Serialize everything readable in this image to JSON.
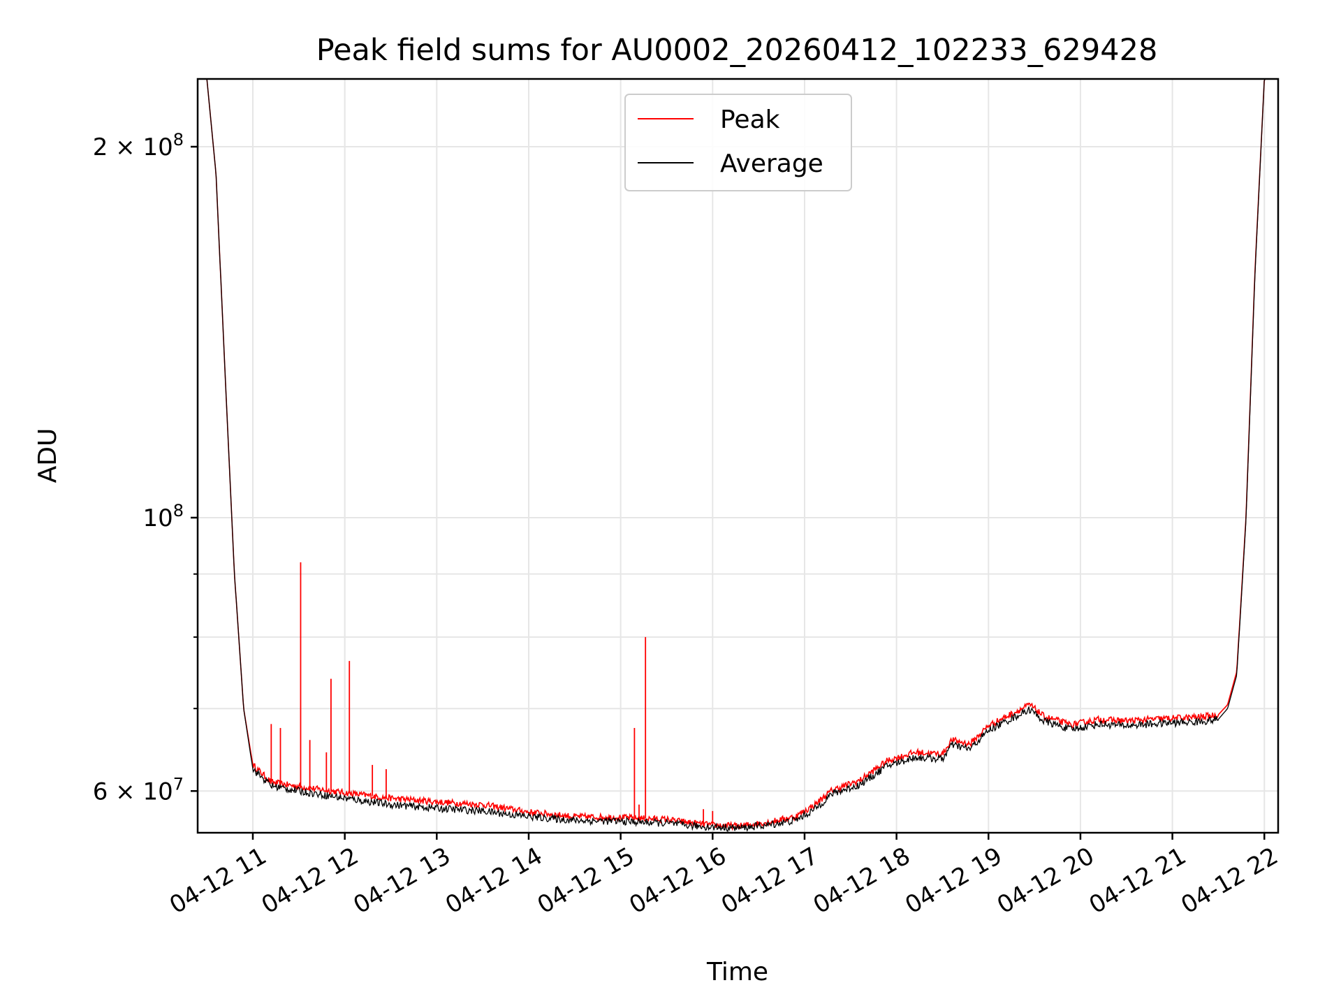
{
  "chart_data": {
    "type": "line",
    "title": "Peak field sums for AU0002_20260412_102233_629428",
    "xlabel": "Time",
    "ylabel": "ADU",
    "yscale": "log",
    "xlim": [
      10.4,
      22.15
    ],
    "ylim": [
      55500000,
      227000000
    ],
    "grid": true,
    "legend_position": "top-center",
    "x_ticks": [
      {
        "value": 11,
        "label": "04-12 11"
      },
      {
        "value": 12,
        "label": "04-12 12"
      },
      {
        "value": 13,
        "label": "04-12 13"
      },
      {
        "value": 14,
        "label": "04-12 14"
      },
      {
        "value": 15,
        "label": "04-12 15"
      },
      {
        "value": 16,
        "label": "04-12 16"
      },
      {
        "value": 17,
        "label": "04-12 17"
      },
      {
        "value": 18,
        "label": "04-12 18"
      },
      {
        "value": 19,
        "label": "04-12 19"
      },
      {
        "value": 20,
        "label": "04-12 20"
      },
      {
        "value": 21,
        "label": "04-12 21"
      },
      {
        "value": 22,
        "label": "04-12 22"
      }
    ],
    "y_major_ticks": [
      {
        "value": 60000000,
        "base": "6 × 10",
        "exp": "7"
      },
      {
        "value": 100000000,
        "base": "10",
        "exp": "8"
      },
      {
        "value": 200000000,
        "base": "2 × 10",
        "exp": "8"
      }
    ],
    "y_minor_ticks": [
      70000000,
      80000000,
      90000000
    ],
    "series": [
      {
        "name": "Peak",
        "color": "#ff0000",
        "x": [
          10.4,
          10.5,
          10.6,
          10.7,
          10.8,
          10.9,
          11.0,
          11.2,
          11.5,
          12.0,
          12.5,
          13.0,
          13.5,
          14.0,
          14.5,
          15.0,
          15.5,
          15.8,
          16.0,
          16.3,
          16.6,
          16.9,
          17.1,
          17.3,
          17.6,
          17.9,
          18.2,
          18.5,
          18.6,
          18.8,
          19.0,
          19.3,
          19.45,
          19.6,
          19.9,
          20.2,
          20.5,
          20.9,
          21.3,
          21.5,
          21.6,
          21.7,
          21.8,
          21.9,
          22.0,
          22.15
        ],
        "y": [
          227000000,
          227000000,
          190000000,
          130000000,
          90000000,
          70000000,
          63000000,
          61000000,
          60500000,
          59800000,
          59200000,
          58800000,
          58500000,
          57700000,
          57200000,
          57100000,
          56900000,
          56500000,
          56300000,
          56200000,
          56600000,
          57200000,
          58400000,
          60100000,
          61200000,
          63500000,
          64500000,
          64300000,
          66000000,
          65500000,
          67800000,
          69600000,
          70500000,
          69000000,
          67900000,
          68600000,
          68400000,
          68700000,
          68900000,
          69200000,
          70500000,
          75000000,
          100000000,
          160000000,
          227000000,
          227000000
        ],
        "spikes": [
          {
            "x": 11.2,
            "y": 68000000
          },
          {
            "x": 11.3,
            "y": 67500000
          },
          {
            "x": 11.52,
            "y": 92000000
          },
          {
            "x": 11.85,
            "y": 74000000
          },
          {
            "x": 12.05,
            "y": 76500000
          },
          {
            "x": 11.62,
            "y": 66000000
          },
          {
            "x": 11.8,
            "y": 64500000
          },
          {
            "x": 12.3,
            "y": 63000000
          },
          {
            "x": 12.45,
            "y": 62500000
          },
          {
            "x": 15.15,
            "y": 67500000
          },
          {
            "x": 15.27,
            "y": 80000000
          },
          {
            "x": 15.2,
            "y": 58500000
          },
          {
            "x": 15.9,
            "y": 58000000
          },
          {
            "x": 16.0,
            "y": 57800000
          }
        ]
      },
      {
        "name": "Average",
        "color": "#000000",
        "x": [
          10.4,
          10.5,
          10.6,
          10.7,
          10.8,
          10.9,
          11.0,
          11.2,
          11.5,
          12.0,
          12.5,
          13.0,
          13.5,
          14.0,
          14.5,
          15.0,
          15.5,
          15.8,
          16.0,
          16.3,
          16.6,
          16.9,
          17.1,
          17.3,
          17.6,
          17.9,
          18.2,
          18.5,
          18.6,
          18.8,
          19.0,
          19.3,
          19.45,
          19.6,
          19.9,
          20.2,
          20.5,
          20.9,
          21.3,
          21.5,
          21.6,
          21.7,
          21.8,
          21.9,
          22.0,
          22.15
        ],
        "y": [
          227000000,
          227000000,
          190000000,
          130000000,
          90000000,
          70000000,
          62500000,
          60600000,
          60000000,
          59200000,
          58500000,
          58100000,
          57800000,
          57200000,
          56800000,
          56700000,
          56500000,
          56200000,
          56100000,
          56000000,
          56300000,
          56800000,
          57900000,
          59700000,
          60700000,
          62900000,
          63900000,
          63700000,
          65400000,
          64900000,
          67200000,
          69000000,
          69900000,
          68400000,
          67300000,
          68000000,
          67800000,
          68100000,
          68300000,
          68600000,
          70000000,
          74500000,
          99500000,
          159000000,
          227000000,
          227000000
        ]
      }
    ]
  }
}
